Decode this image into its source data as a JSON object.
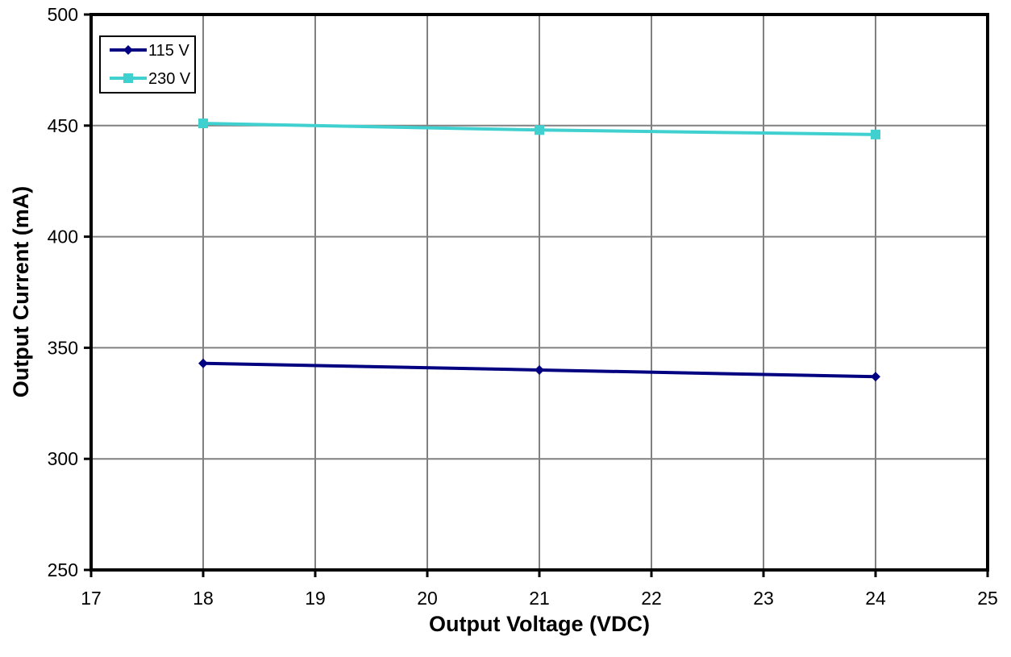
{
  "chart_data": {
    "type": "line",
    "xlabel": "Output Voltage (VDC)",
    "ylabel": "Output Current (mA)",
    "xlim": [
      17,
      25
    ],
    "ylim": [
      250,
      500
    ],
    "xticks": [
      17,
      18,
      19,
      20,
      21,
      22,
      23,
      24,
      25
    ],
    "yticks": [
      250,
      300,
      350,
      400,
      450,
      500
    ],
    "grid": true,
    "legend_position": "top-left",
    "series": [
      {
        "name": "115 V",
        "color": "#000080",
        "marker": "diamond",
        "x": [
          18,
          21,
          24
        ],
        "y": [
          343,
          340,
          337
        ]
      },
      {
        "name": "230 V",
        "color": "#40D0D0",
        "marker": "square",
        "x": [
          18,
          21,
          24
        ],
        "y": [
          451,
          448,
          446
        ]
      }
    ]
  }
}
